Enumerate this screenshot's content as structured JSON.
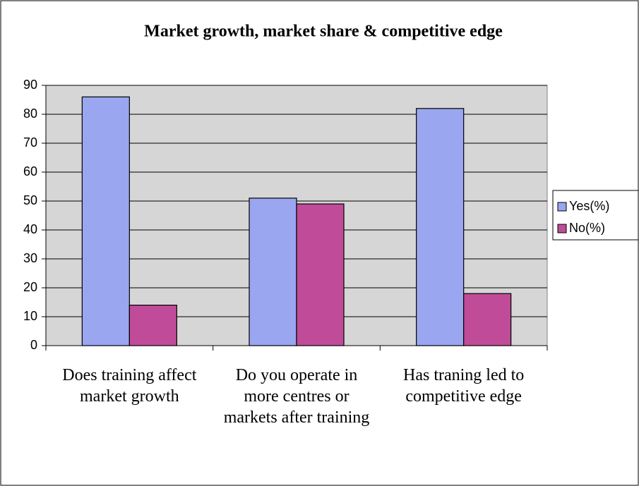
{
  "chart_data": {
    "type": "bar",
    "title": "Market growth, market share & competitive edge",
    "categories": [
      "Does training affect market growth",
      "Do you operate in more centres or markets after training",
      "Has traning led to competitive edge"
    ],
    "series": [
      {
        "name": "Yes(%)",
        "color": "#9aa6f0",
        "values": [
          86,
          51,
          82
        ]
      },
      {
        "name": "No(%)",
        "color": "#c04c99",
        "values": [
          14,
          49,
          18
        ]
      }
    ],
    "ylim": [
      0,
      90
    ],
    "yticks": [
      0,
      10,
      20,
      30,
      40,
      50,
      60,
      70,
      80,
      90
    ],
    "grid": true,
    "legend": "right"
  }
}
